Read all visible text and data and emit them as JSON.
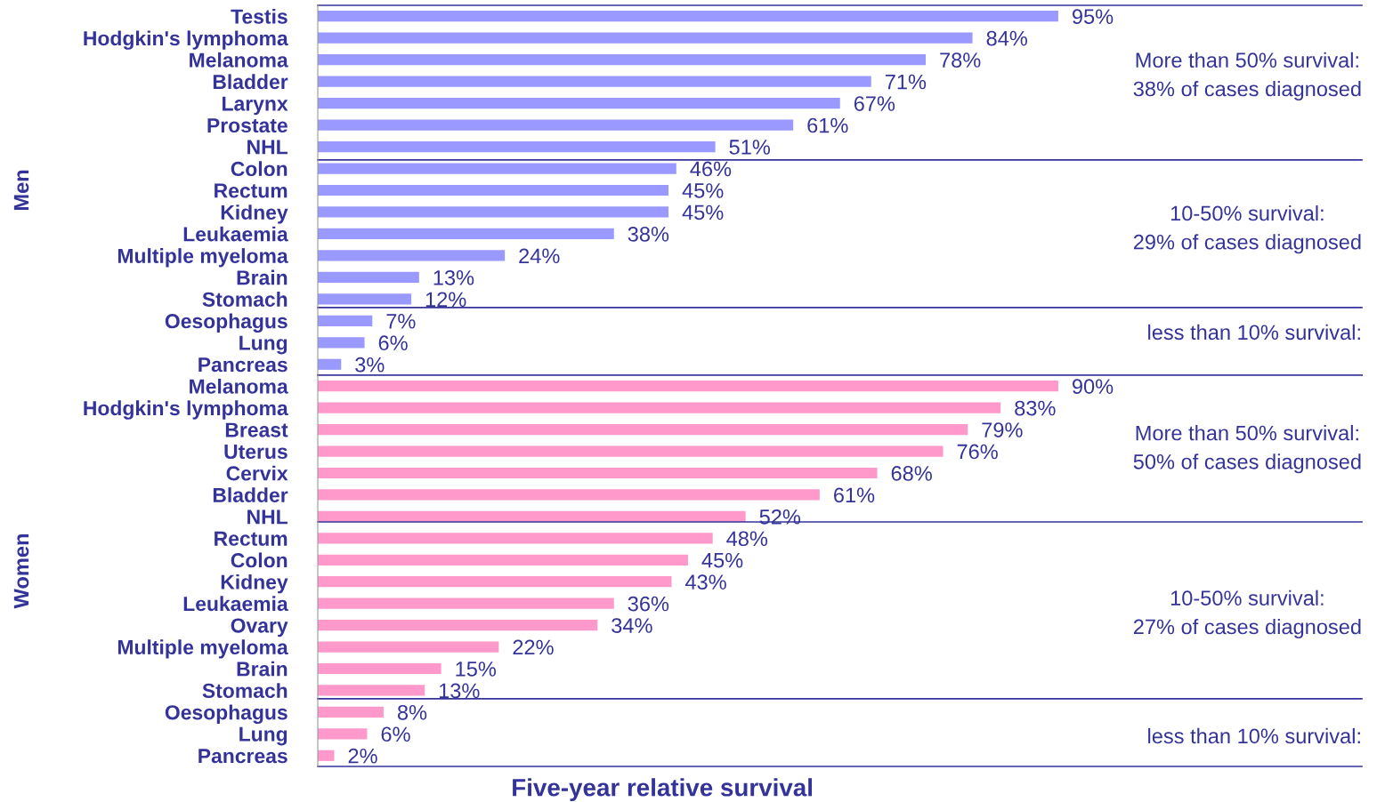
{
  "chart_data": [
    {
      "type": "bar",
      "orientation": "horizontal",
      "ylabel": "Men",
      "tick_labels": "y",
      "color": "#9999ff",
      "categories": [
        "Testis",
        "Hodgkin's lymphoma",
        "Melanoma",
        "Bladder",
        "Larynx",
        "Prostate",
        "NHL",
        "Colon",
        "Rectum",
        "Kidney",
        "Leukaemia",
        "Multiple myeloma",
        "Brain",
        "Stomach",
        "Oesophagus",
        "Lung",
        "Pancreas"
      ],
      "values": [
        95,
        84,
        78,
        71,
        67,
        61,
        51,
        46,
        45,
        45,
        38,
        24,
        13,
        12,
        7,
        6,
        3
      ],
      "value_labels": [
        "95%",
        "84%",
        "78%",
        "71%",
        "67%",
        "61%",
        "51%",
        "46%",
        "45%",
        "45%",
        "38%",
        "24%",
        "13%",
        "12%",
        "7%",
        "6%",
        "3%"
      ],
      "annotations": [
        "More than 50% survival:\n38% of cases diagnosed",
        "10-50% survival:\n29% of cases diagnosed",
        "less than 10% survival:"
      ]
    },
    {
      "type": "bar",
      "orientation": "horizontal",
      "ylabel": "Women",
      "xlabel": "Five-year relative survival",
      "tick_labels": "y",
      "color": "#ff99cc",
      "categories": [
        "Melanoma",
        "Hodgkin's lymphoma",
        "Breast",
        "Uterus",
        "Cervix",
        "Bladder",
        "NHL",
        "Rectum",
        "Colon",
        "Kidney",
        "Leukaemia",
        "Ovary",
        "Multiple myeloma",
        "Brain",
        "Stomach",
        "Oesophagus",
        "Lung",
        "Pancreas"
      ],
      "values": [
        90,
        83,
        79,
        76,
        68,
        61,
        52,
        48,
        45,
        43,
        36,
        34,
        22,
        15,
        13,
        8,
        6,
        2
      ],
      "value_labels": [
        "90%",
        "83%",
        "79%",
        "76%",
        "68%",
        "61%",
        "52%",
        "48%",
        "45%",
        "43%",
        "36%",
        "34%",
        "22%",
        "15%",
        "13%",
        "8%",
        "6%",
        "2%"
      ],
      "annotations": [
        "More than 50% survival:\n50% of cases diagnosed",
        "10-50% survival:\n27% of cases diagnosed",
        "less than 10% survival:"
      ]
    }
  ]
}
